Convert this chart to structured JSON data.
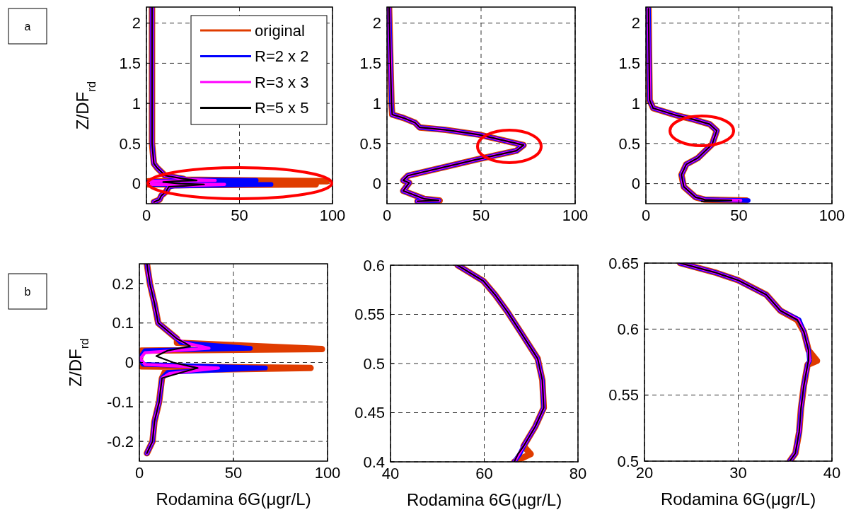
{
  "chart_data": [
    {
      "type": "line",
      "ylabel": "Z/DF$_{rd}$",
      "xlim": [
        0,
        100
      ],
      "xticks": [
        0,
        50,
        100
      ],
      "ylim": [
        -0.25,
        2.2
      ],
      "yticks": [
        0,
        0.5,
        1,
        1.5,
        2
      ],
      "grid": true,
      "legend": "top right",
      "annotations": [
        "a"
      ],
      "series": [
        {
          "name": "original",
          "color": "#e03c00",
          "x": [
            3,
            3,
            3,
            3,
            4,
            5.6,
            10,
            20,
            20,
            97,
            1,
            0,
            1,
            91,
            14,
            12,
            10.5,
            8,
            7,
            4
          ],
          "values": [
            2.2,
            1.5,
            1,
            0.5,
            0.25,
            0.2,
            0.1,
            0.06,
            0.05,
            0.03,
            0.03,
            0,
            -0.01,
            -0.01,
            -0.02,
            -0.04,
            -0.1,
            -0.15,
            -0.2,
            -0.23
          ]
        },
        {
          "name": "R=2 x 2",
          "color": "#0000ff",
          "x": [
            3,
            3,
            3,
            3,
            4,
            5.6,
            10,
            20,
            22,
            59,
            3,
            0,
            2,
            67,
            15,
            12,
            10.5,
            8,
            7,
            4
          ],
          "values": [
            2.2,
            1.5,
            1,
            0.5,
            0.25,
            0.2,
            0.1,
            0.06,
            0.05,
            0.04,
            0.03,
            0.01,
            -0.01,
            -0.01,
            -0.03,
            -0.04,
            -0.1,
            -0.15,
            -0.2,
            -0.23
          ]
        },
        {
          "name": "R=3 x 3",
          "color": "#ff00ff",
          "x": [
            3,
            3,
            3,
            3,
            4,
            5.6,
            10,
            20,
            24,
            37,
            3,
            0.5,
            3,
            42,
            16,
            12,
            10.5,
            8,
            7,
            4
          ],
          "values": [
            2.2,
            1.5,
            1,
            0.5,
            0.25,
            0.2,
            0.1,
            0.06,
            0.05,
            0.04,
            0.03,
            0.01,
            -0.01,
            -0.01,
            -0.03,
            -0.04,
            -0.1,
            -0.15,
            -0.2,
            -0.23
          ]
        },
        {
          "name": "R=5 x 5",
          "color": "#000000",
          "x": [
            3,
            3,
            3,
            3,
            4,
            5.6,
            10,
            20,
            24,
            27,
            15,
            9,
            18,
            31,
            19,
            12,
            10.5,
            8,
            7,
            4
          ],
          "values": [
            2.2,
            1.5,
            1,
            0.5,
            0.25,
            0.2,
            0.1,
            0.06,
            0.05,
            0.04,
            0.03,
            0.02,
            0,
            -0.01,
            -0.03,
            -0.04,
            -0.1,
            -0.15,
            -0.2,
            -0.23
          ]
        }
      ]
    },
    {
      "type": "line",
      "xlim": [
        0,
        100
      ],
      "xticks": [
        0,
        50,
        100
      ],
      "ylim": [
        -0.25,
        2.2
      ],
      "yticks": [
        0,
        0.5,
        1,
        1.5,
        2
      ],
      "grid": true,
      "series": [
        {
          "color": "#e03c00",
          "x": [
            1.1,
            2.4,
            2.8,
            8.6,
            14.9,
            17.4,
            31.2,
            48.8,
            72.6,
            68.8,
            47.5,
            11.2,
            8.6,
            11.8,
            8.6,
            19.9,
            28,
            16.2
          ],
          "values": [
            2.2,
            1,
            0.86,
            0.82,
            0.76,
            0.7,
            0.67,
            0.61,
            0.48,
            0.41,
            0.3,
            0.1,
            0.04,
            0.01,
            -0.09,
            -0.19,
            -0.21,
            -0.22
          ]
        },
        {
          "color": "#0000ff",
          "x": [
            1.1,
            2.4,
            2.8,
            8.6,
            14.9,
            17.4,
            31.2,
            48.8,
            72.6,
            68.8,
            47.5,
            11.2,
            8.6,
            11.8,
            8.6,
            19.9,
            27.6,
            16.2
          ],
          "values": [
            2.2,
            1,
            0.86,
            0.82,
            0.76,
            0.7,
            0.67,
            0.61,
            0.48,
            0.41,
            0.3,
            0.1,
            0.04,
            0.01,
            -0.09,
            -0.19,
            -0.21,
            -0.22
          ]
        },
        {
          "color": "#ff00ff",
          "x": [
            1.1,
            2.4,
            2.8,
            8.6,
            14.9,
            17.4,
            31.2,
            48.8,
            72.6,
            68.8,
            47.5,
            11.2,
            8.6,
            11.8,
            8.6,
            19.9,
            27.6,
            16.2
          ],
          "values": [
            2.2,
            1,
            0.86,
            0.82,
            0.76,
            0.7,
            0.67,
            0.61,
            0.48,
            0.41,
            0.3,
            0.1,
            0.04,
            0.01,
            -0.09,
            -0.19,
            -0.21,
            -0.22
          ]
        },
        {
          "color": "#000000",
          "x": [
            1.1,
            2.4,
            2.8,
            8.6,
            14.9,
            17.4,
            31.2,
            48.8,
            72.6,
            68.8,
            47.5,
            11.2,
            8.6,
            11.8,
            8.6,
            19.9,
            27.4,
            16.2
          ],
          "values": [
            2.2,
            1,
            0.86,
            0.82,
            0.76,
            0.7,
            0.67,
            0.61,
            0.48,
            0.41,
            0.3,
            0.1,
            0.04,
            0.01,
            -0.09,
            -0.19,
            -0.21,
            -0.22
          ]
        }
      ]
    },
    {
      "type": "line",
      "xlim": [
        0,
        100
      ],
      "xticks": [
        0,
        50,
        100
      ],
      "ylim": [
        -0.25,
        2.2
      ],
      "yticks": [
        0,
        0.5,
        1,
        1.5,
        2
      ],
      "grid": true,
      "series": [
        {
          "color": "#e03c00",
          "x": [
            1.4,
            2,
            3.9,
            16.6,
            25.5,
            34.3,
            38.1,
            35.6,
            28,
            21.7,
            19.1,
            20.4,
            26.7,
            31.8,
            54
          ],
          "values": [
            2.18,
            1.04,
            0.94,
            0.85,
            0.8,
            0.74,
            0.66,
            0.49,
            0.32,
            0.24,
            0.11,
            -0.04,
            -0.17,
            -0.2,
            -0.21
          ]
        },
        {
          "color": "#0000ff",
          "x": [
            1.4,
            2,
            3.9,
            16.6,
            25.5,
            34.3,
            38.1,
            35.6,
            28,
            21.7,
            19.1,
            20.4,
            26.7,
            31.8,
            55
          ],
          "values": [
            2.18,
            1.04,
            0.94,
            0.85,
            0.8,
            0.74,
            0.66,
            0.49,
            0.32,
            0.24,
            0.11,
            -0.04,
            -0.17,
            -0.2,
            -0.21
          ]
        },
        {
          "color": "#ff00ff",
          "x": [
            1.4,
            2,
            3.9,
            16.6,
            25.5,
            34.3,
            38.1,
            35.6,
            28,
            21.7,
            19.1,
            20.4,
            26.7,
            31.8,
            51
          ],
          "values": [
            2.18,
            1.04,
            0.94,
            0.85,
            0.8,
            0.74,
            0.66,
            0.49,
            0.32,
            0.24,
            0.11,
            -0.04,
            -0.17,
            -0.2,
            -0.21
          ]
        },
        {
          "color": "#000000",
          "x": [
            1.4,
            2,
            3.9,
            16.6,
            25.5,
            34.3,
            38.1,
            35.6,
            28,
            21.7,
            19.1,
            20.4,
            26.7,
            31.8,
            46,
            30
          ],
          "values": [
            2.18,
            1.04,
            0.94,
            0.85,
            0.8,
            0.74,
            0.66,
            0.49,
            0.32,
            0.24,
            0.11,
            -0.04,
            -0.17,
            -0.2,
            -0.21,
            -0.22
          ]
        }
      ]
    },
    {
      "type": "line",
      "ylabel": "Z/DF$_{rd}$",
      "xlabel": "Rodamina 6G(μgr/L)",
      "xlim": [
        0,
        100
      ],
      "xticks": [
        0,
        50,
        100
      ],
      "ylim": [
        -0.25,
        0.25
      ],
      "yticks": [
        -0.2,
        -0.1,
        0,
        0.1,
        0.2
      ],
      "grid": true,
      "annotations": [
        "b"
      ],
      "series": [
        {
          "color": "#e03c00",
          "x": [
            4,
            5.6,
            8,
            10,
            20,
            20,
            97,
            1,
            0,
            1,
            91,
            14,
            12,
            10.5,
            8,
            7,
            4
          ],
          "values": [
            0.25,
            0.2,
            0.15,
            0.1,
            0.06,
            0.05,
            0.034,
            0.03,
            0,
            -0.01,
            -0.014,
            -0.02,
            -0.04,
            -0.1,
            -0.15,
            -0.2,
            -0.23
          ]
        },
        {
          "color": "#0000ff",
          "x": [
            4,
            5.6,
            8,
            10,
            20,
            22,
            59,
            3,
            0,
            2,
            67,
            15,
            12,
            10.5,
            8,
            7,
            4
          ],
          "values": [
            0.25,
            0.2,
            0.15,
            0.1,
            0.06,
            0.05,
            0.036,
            0.03,
            0.01,
            -0.005,
            -0.014,
            -0.025,
            -0.04,
            -0.1,
            -0.15,
            -0.2,
            -0.23
          ]
        },
        {
          "color": "#ff00ff",
          "x": [
            4,
            5.6,
            8,
            10,
            20,
            24,
            37,
            3,
            0.5,
            3,
            42,
            16,
            12,
            10.5,
            8,
            7,
            4
          ],
          "values": [
            0.25,
            0.2,
            0.15,
            0.1,
            0.06,
            0.05,
            0.036,
            0.025,
            0.01,
            -0.005,
            -0.014,
            -0.028,
            -0.04,
            -0.1,
            -0.15,
            -0.2,
            -0.23
          ]
        },
        {
          "color": "#000000",
          "x": [
            4,
            5.6,
            8,
            10,
            20,
            24,
            27,
            15,
            9,
            18,
            31,
            19,
            12,
            10.5,
            8,
            7,
            4
          ],
          "values": [
            0.25,
            0.2,
            0.15,
            0.1,
            0.06,
            0.05,
            0.041,
            0.03,
            0.016,
            0,
            -0.014,
            -0.03,
            -0.04,
            -0.1,
            -0.15,
            -0.2,
            -0.23
          ]
        }
      ]
    },
    {
      "type": "line",
      "xlabel": "Rodamina 6G(μgr/L)",
      "xlim": [
        40,
        80
      ],
      "xticks": [
        40,
        60,
        80
      ],
      "ylim": [
        0.4,
        0.6
      ],
      "yticks": [
        0.4,
        0.45,
        0.5,
        0.55,
        0.6
      ],
      "grid": true,
      "series": [
        {
          "color": "#e03c00",
          "x": [
            54.3,
            59.8,
            62.3,
            64.9,
            67.9,
            71.4,
            72.4,
            72.7,
            70.9,
            68.4,
            69.9,
            66.4
          ],
          "values": [
            0.6,
            0.584,
            0.57,
            0.553,
            0.531,
            0.505,
            0.483,
            0.455,
            0.436,
            0.416,
            0.408,
            0.4
          ]
        },
        {
          "color": "#0000ff",
          "x": [
            54.3,
            59.8,
            62.3,
            64.9,
            67.9,
            71.4,
            72.4,
            72.7,
            70.9,
            68.4,
            67.6,
            66.4
          ],
          "values": [
            0.6,
            0.584,
            0.57,
            0.553,
            0.531,
            0.505,
            0.483,
            0.455,
            0.436,
            0.416,
            0.408,
            0.4
          ]
        },
        {
          "color": "#ff00ff",
          "x": [
            54.3,
            59.8,
            62.3,
            64.9,
            67.9,
            71.4,
            72.4,
            72.7,
            70.9,
            68.4,
            67.4,
            66.4
          ],
          "values": [
            0.6,
            0.584,
            0.57,
            0.553,
            0.531,
            0.505,
            0.483,
            0.455,
            0.436,
            0.416,
            0.408,
            0.4
          ]
        },
        {
          "color": "#000000",
          "x": [
            54.3,
            59.8,
            62.3,
            64.9,
            67.9,
            71.4,
            72.4,
            72.7,
            70.9,
            68.4,
            67.2,
            66.4
          ],
          "values": [
            0.6,
            0.584,
            0.57,
            0.553,
            0.531,
            0.505,
            0.483,
            0.455,
            0.436,
            0.416,
            0.408,
            0.4
          ]
        }
      ]
    },
    {
      "type": "line",
      "xlabel": "Rodamina 6G(μgr/L)",
      "xlim": [
        20,
        40
      ],
      "xticks": [
        20,
        30,
        40
      ],
      "ylim": [
        0.5,
        0.65
      ],
      "yticks": [
        0.5,
        0.55,
        0.6,
        0.65
      ],
      "grid": true,
      "series": [
        {
          "color": "#e03c00",
          "x": [
            23.8,
            27.5,
            30,
            33,
            34.5,
            36.3,
            37,
            37.5,
            38.4,
            37.4,
            37,
            36.7,
            36.5,
            36.1,
            35.5
          ],
          "values": [
            0.65,
            0.643,
            0.637,
            0.626,
            0.614,
            0.607,
            0.598,
            0.584,
            0.576,
            0.573,
            0.557,
            0.54,
            0.522,
            0.506,
            0.5
          ]
        },
        {
          "color": "#0000ff",
          "x": [
            23.8,
            27.5,
            30,
            33,
            34.5,
            36.5,
            37,
            37.5,
            37.6,
            37.4,
            37,
            36.7,
            36.5,
            36.1,
            35.5
          ],
          "values": [
            0.65,
            0.643,
            0.637,
            0.626,
            0.614,
            0.607,
            0.598,
            0.584,
            0.576,
            0.573,
            0.557,
            0.54,
            0.522,
            0.506,
            0.5
          ]
        },
        {
          "color": "#ff00ff",
          "x": [
            23.8,
            27.5,
            30,
            33,
            34.5,
            36.4,
            37,
            37.5,
            37.6,
            37.4,
            37,
            36.7,
            36.5,
            36.1,
            35.5
          ],
          "values": [
            0.65,
            0.643,
            0.637,
            0.626,
            0.614,
            0.607,
            0.598,
            0.584,
            0.576,
            0.573,
            0.557,
            0.54,
            0.522,
            0.506,
            0.5
          ]
        },
        {
          "color": "#000000",
          "x": [
            23.8,
            27.5,
            30,
            33,
            34.5,
            36.3,
            37,
            37.5,
            37.5,
            37.4,
            37,
            36.7,
            36.5,
            36.1,
            35.5
          ],
          "values": [
            0.65,
            0.643,
            0.637,
            0.626,
            0.614,
            0.607,
            0.598,
            0.584,
            0.576,
            0.573,
            0.557,
            0.54,
            0.522,
            0.506,
            0.5
          ]
        }
      ]
    }
  ]
}
